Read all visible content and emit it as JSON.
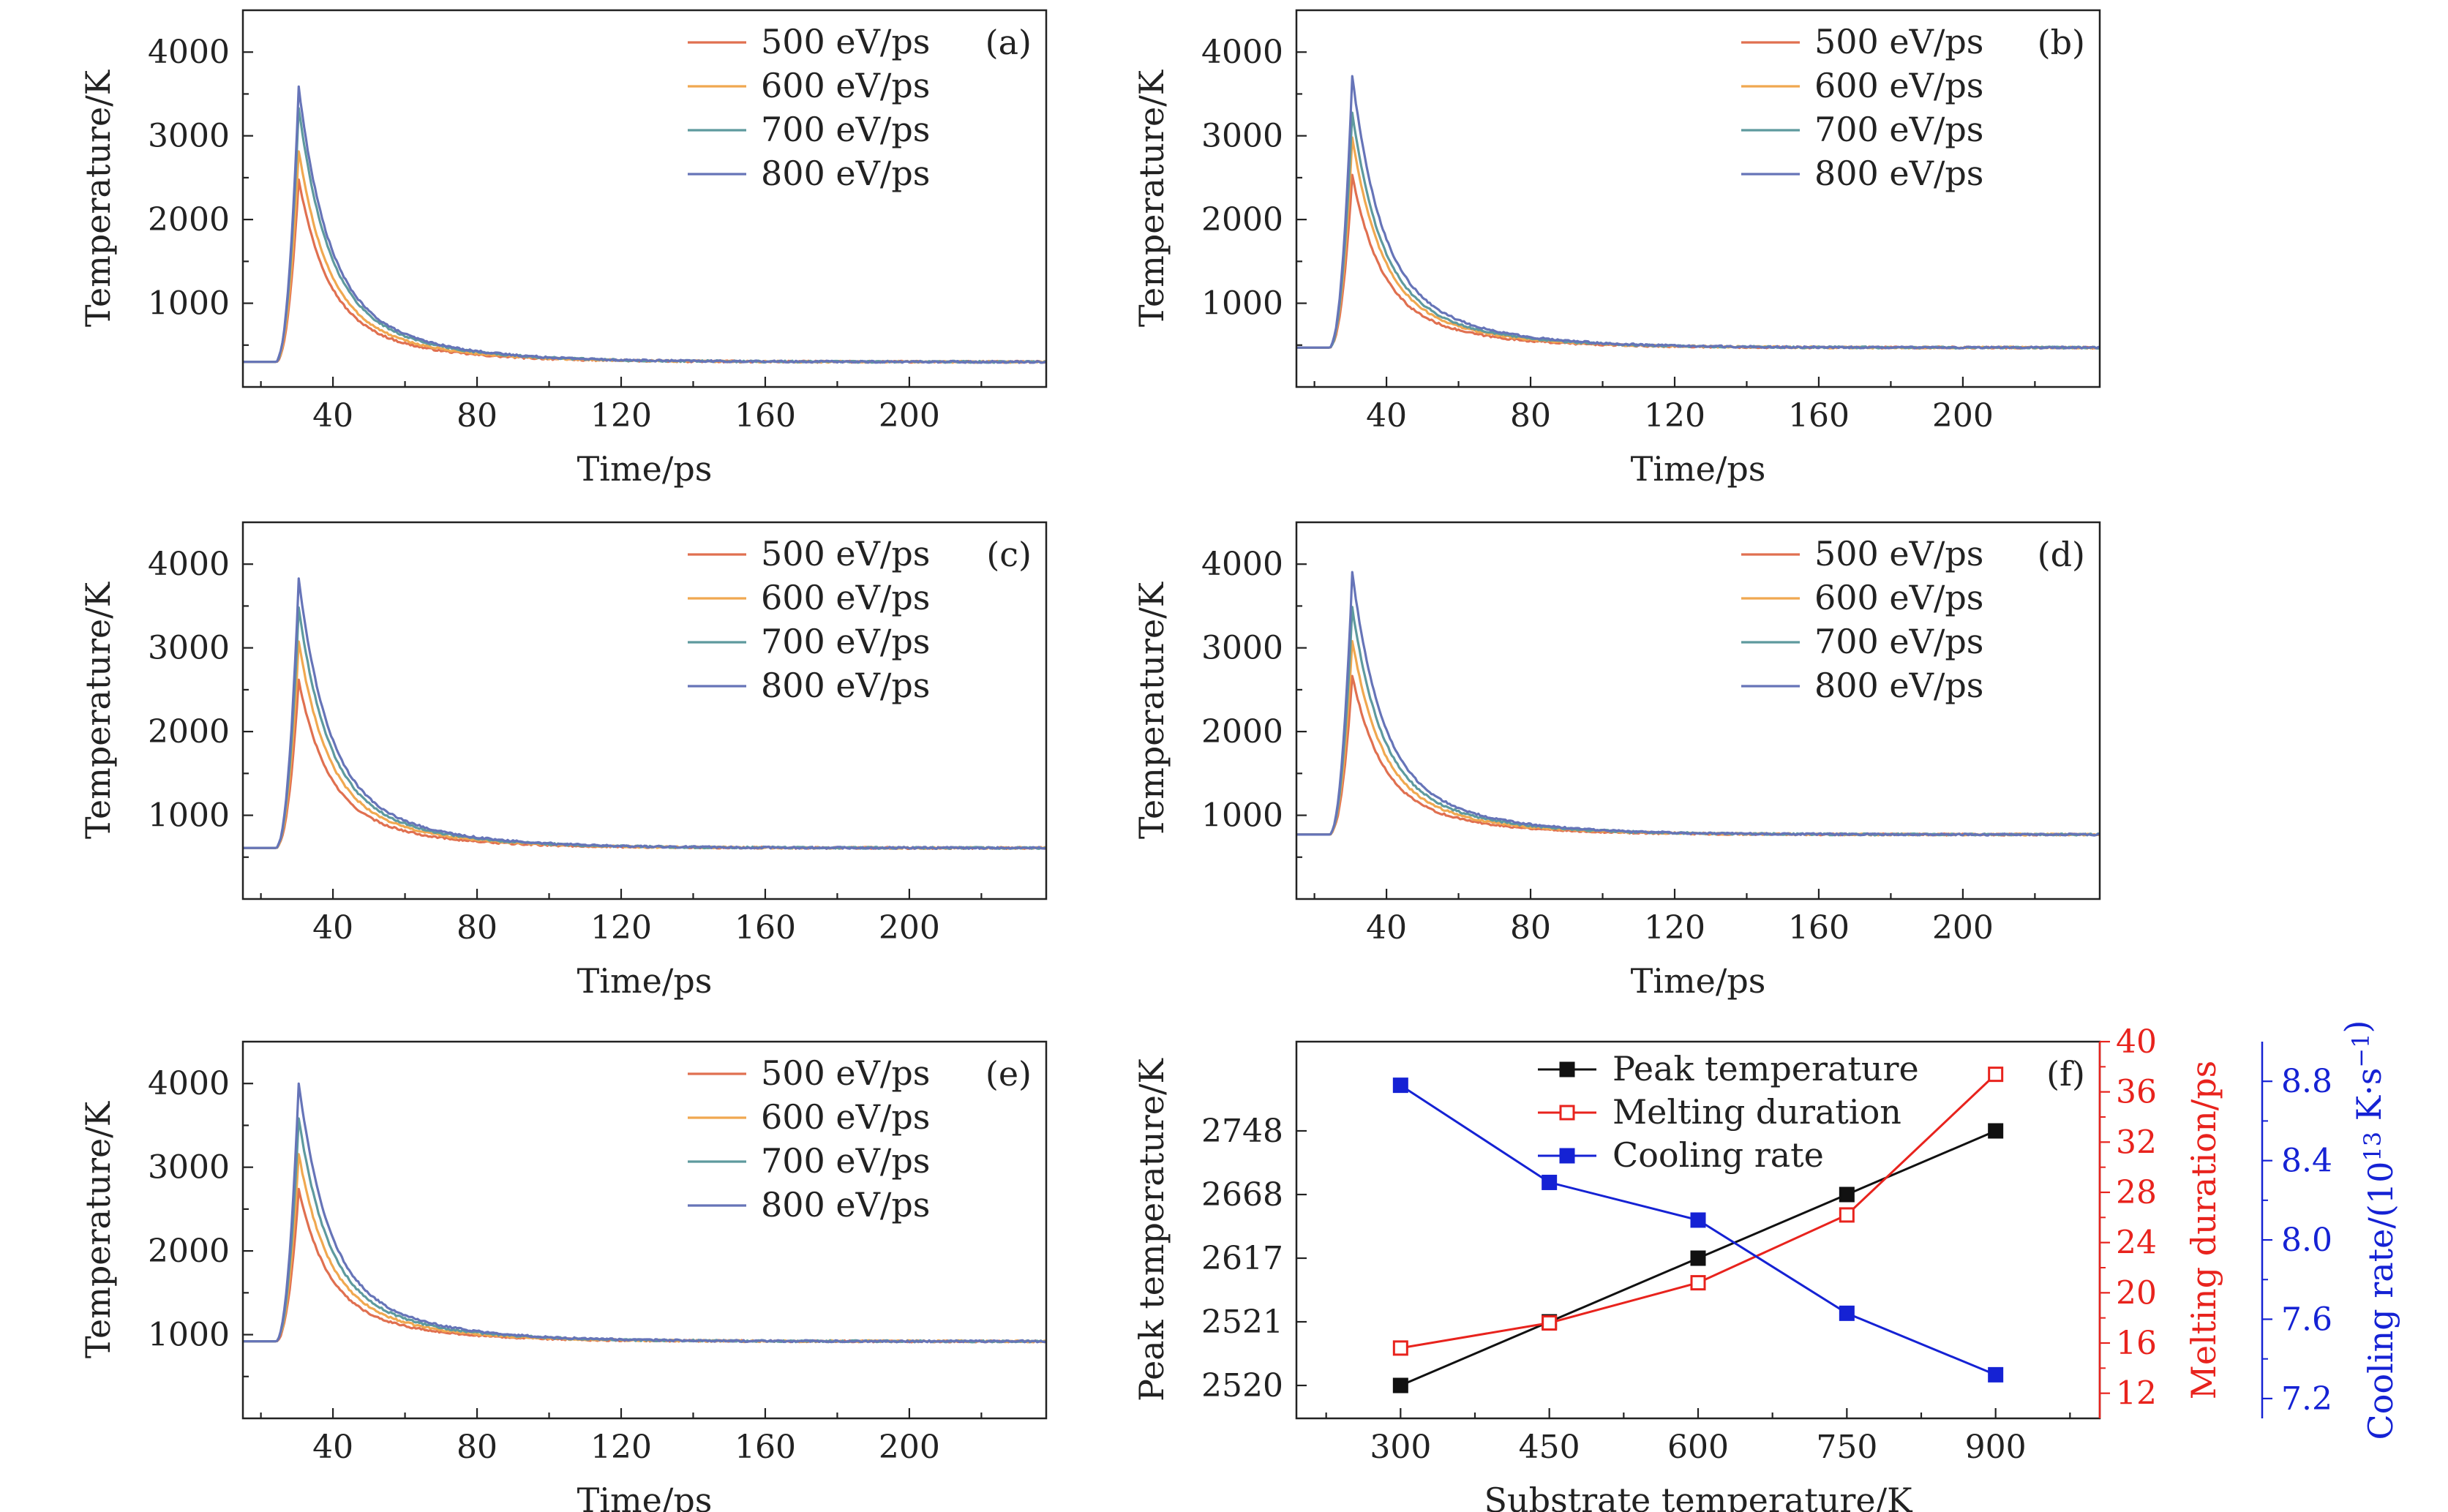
{
  "chart_data": [
    {
      "id": "a",
      "type": "line",
      "panel_label": "(a)",
      "xlabel": "Time/ps",
      "ylabel": "Temperature/K",
      "xlim": [
        15,
        238
      ],
      "ylim": [
        0,
        4500
      ],
      "xticks": [
        40,
        80,
        120,
        160,
        200
      ],
      "yticks": [
        1000,
        2000,
        3000,
        4000
      ],
      "legend_position": "top-right",
      "baseline": 300,
      "series": [
        {
          "name": "500 eV/ps",
          "color": "#e07050",
          "peak": 2480
        },
        {
          "name": "600 eV/ps",
          "color": "#f0a850",
          "peak": 2820
        },
        {
          "name": "700 eV/ps",
          "color": "#5e9a9e",
          "peak": 3340
        },
        {
          "name": "800 eV/ps",
          "color": "#6674b8",
          "peak": 3580
        }
      ]
    },
    {
      "id": "b",
      "type": "line",
      "panel_label": "(b)",
      "xlabel": "Time/ps",
      "ylabel": "Temperature/K",
      "xlim": [
        15,
        238
      ],
      "ylim": [
        0,
        4500
      ],
      "xticks": [
        40,
        80,
        120,
        160,
        200
      ],
      "yticks": [
        1000,
        2000,
        3000,
        4000
      ],
      "legend_position": "top-right",
      "baseline": 470,
      "series": [
        {
          "name": "500 eV/ps",
          "color": "#e07050",
          "peak": 2530
        },
        {
          "name": "600 eV/ps",
          "color": "#f0a850",
          "peak": 2980
        },
        {
          "name": "700 eV/ps",
          "color": "#5e9a9e",
          "peak": 3280
        },
        {
          "name": "800 eV/ps",
          "color": "#6674b8",
          "peak": 3720
        }
      ]
    },
    {
      "id": "c",
      "type": "line",
      "panel_label": "(c)",
      "xlabel": "Time/ps",
      "ylabel": "Temperature/K",
      "xlim": [
        15,
        238
      ],
      "ylim": [
        0,
        4500
      ],
      "xticks": [
        40,
        80,
        120,
        160,
        200
      ],
      "yticks": [
        1000,
        2000,
        3000,
        4000
      ],
      "legend_position": "top-right",
      "baseline": 610,
      "series": [
        {
          "name": "500 eV/ps",
          "color": "#e07050",
          "peak": 2610
        },
        {
          "name": "600 eV/ps",
          "color": "#f0a850",
          "peak": 3070
        },
        {
          "name": "700 eV/ps",
          "color": "#5e9a9e",
          "peak": 3480
        },
        {
          "name": "800 eV/ps",
          "color": "#6674b8",
          "peak": 3830
        }
      ]
    },
    {
      "id": "d",
      "type": "line",
      "panel_label": "(d)",
      "xlabel": "Time/ps",
      "ylabel": "Temperature/K",
      "xlim": [
        15,
        238
      ],
      "ylim": [
        0,
        4500
      ],
      "xticks": [
        40,
        80,
        120,
        160,
        200
      ],
      "yticks": [
        1000,
        2000,
        3000,
        4000
      ],
      "legend_position": "top-right",
      "baseline": 770,
      "series": [
        {
          "name": "500 eV/ps",
          "color": "#e07050",
          "peak": 2670
        },
        {
          "name": "600 eV/ps",
          "color": "#f0a850",
          "peak": 3090
        },
        {
          "name": "700 eV/ps",
          "color": "#5e9a9e",
          "peak": 3480
        },
        {
          "name": "800 eV/ps",
          "color": "#6674b8",
          "peak": 3900
        }
      ]
    },
    {
      "id": "e",
      "type": "line",
      "panel_label": "(e)",
      "xlabel": "Time/ps",
      "ylabel": "Temperature/K",
      "xlim": [
        15,
        238
      ],
      "ylim": [
        0,
        4500
      ],
      "xticks": [
        40,
        80,
        120,
        160,
        200
      ],
      "yticks": [
        1000,
        2000,
        3000,
        4000
      ],
      "legend_position": "top-right",
      "baseline": 920,
      "series": [
        {
          "name": "500 eV/ps",
          "color": "#e07050",
          "peak": 2740
        },
        {
          "name": "600 eV/ps",
          "color": "#f0a850",
          "peak": 3160
        },
        {
          "name": "700 eV/ps",
          "color": "#5e9a9e",
          "peak": 3590
        },
        {
          "name": "800 eV/ps",
          "color": "#6674b8",
          "peak": 4010
        }
      ]
    },
    {
      "id": "f",
      "type": "line",
      "panel_label": "(f)",
      "xlabel": "Substrate temperature/K",
      "x": [
        300,
        450,
        600,
        750,
        900
      ],
      "xlim": [
        195,
        1005
      ],
      "xticks": [
        300,
        450,
        600,
        750,
        900
      ],
      "legend_position": "top-center",
      "axes": {
        "left": {
          "label": "Peak temperature/K",
          "ticks": [
            "2520",
            "2521",
            "2617",
            "2668",
            "2748"
          ]
        },
        "right1": {
          "label": "Melting duration/ps",
          "lim": [
            10,
            40
          ],
          "ticks": [
            12,
            16,
            20,
            24,
            28,
            32,
            36,
            40
          ],
          "color": "#e8231d"
        },
        "right2": {
          "label_main": "Cooling rate/(10",
          "label_sup1": "13",
          "label_mid": " K·s",
          "label_sup2": "−1",
          "label_end": ")",
          "lim": [
            7.1,
            9.0
          ],
          "ticks": [
            "7.2",
            "7.6",
            "8.0",
            "8.4",
            "8.8"
          ],
          "color": "#1522d4"
        }
      },
      "series": [
        {
          "name": "Peak temperature",
          "axis": "left",
          "values": [
            0.0,
            1.0,
            2.0,
            3.0,
            4.0
          ],
          "color": "#111111",
          "marker": "filled-square"
        },
        {
          "name": "Melting duration",
          "axis": "right1",
          "values": [
            15.6,
            17.6,
            20.8,
            26.2,
            37.4
          ],
          "color": "#e8231d",
          "marker": "open-square"
        },
        {
          "name": "Cooling rate",
          "axis": "right2",
          "values": [
            8.78,
            8.29,
            8.1,
            7.63,
            7.32
          ],
          "color": "#1522d4",
          "marker": "filled-square"
        }
      ]
    }
  ]
}
